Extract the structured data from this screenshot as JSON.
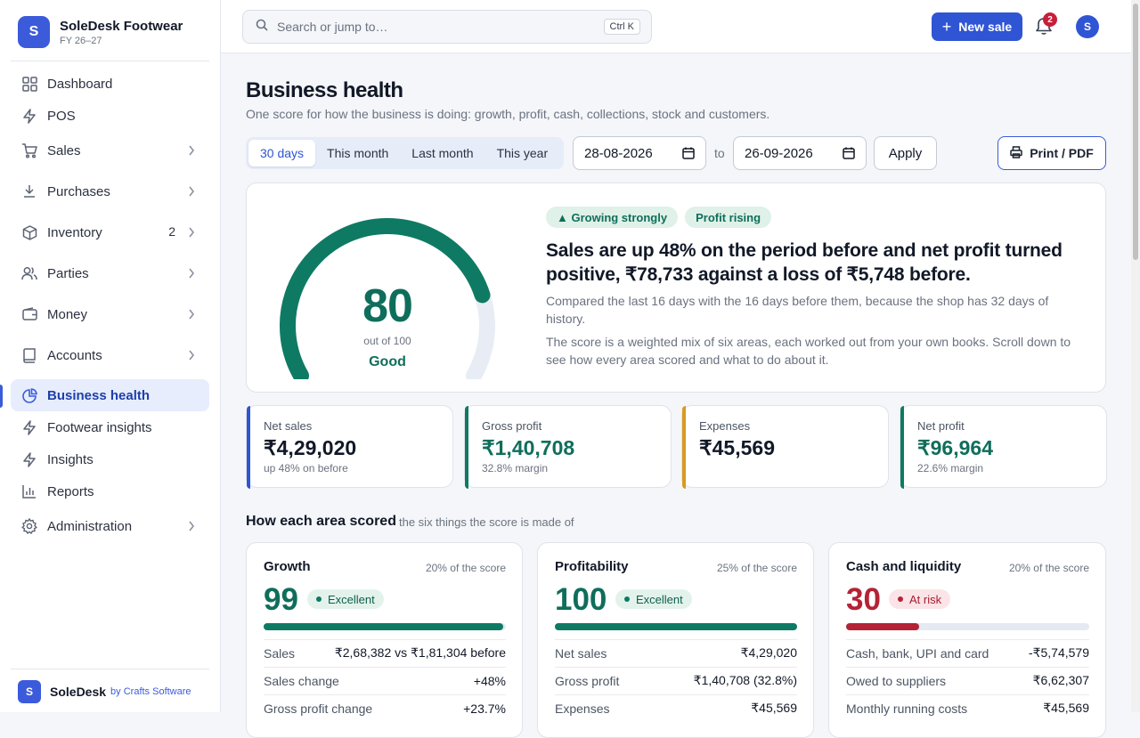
{
  "brand": {
    "initial": "S",
    "name": "SoleDesk Footwear",
    "fy": "FY 26–27"
  },
  "sidebar": {
    "items": [
      {
        "label": "Dashboard"
      },
      {
        "label": "POS"
      },
      {
        "label": "Sales"
      },
      {
        "label": "Purchases"
      },
      {
        "label": "Inventory",
        "count": "2"
      },
      {
        "label": "Parties"
      },
      {
        "label": "Money"
      },
      {
        "label": "Accounts"
      },
      {
        "label": "Business health"
      },
      {
        "label": "Footwear insights"
      },
      {
        "label": "Insights"
      },
      {
        "label": "Reports"
      },
      {
        "label": "Administration"
      }
    ],
    "footer": {
      "initial": "S",
      "name": "SoleDesk",
      "by": "by Crafts Software"
    }
  },
  "topbar": {
    "search_placeholder": "Search or jump to…",
    "shortcut": "Ctrl K",
    "new_sale": "New sale",
    "notifications": "2",
    "avatar": "S"
  },
  "page": {
    "title": "Business health",
    "subtitle": "One score for how the business is doing: growth, profit, cash, collections, stock and customers.",
    "ranges": [
      "30 days",
      "This month",
      "Last month",
      "This year"
    ],
    "active_range": "30 days",
    "date_from": "28-08-2026",
    "to": "to",
    "date_to": "26-09-2026",
    "apply": "Apply",
    "print": "Print / PDF"
  },
  "hero": {
    "score": "80",
    "score_fraction": 0.8,
    "out_of": "out of 100",
    "label": "Good",
    "badges": [
      "▲ Growing strongly",
      "Profit rising"
    ],
    "headline": "Sales are up 48% on the period before and net profit turned positive, ₹78,733 against a loss of ₹5,748 before.",
    "para1": "Compared the last 16 days with the 16 days before them, because the shop has 32 days of history.",
    "para2": "The score is a weighted mix of six areas, each worked out from your own books. Scroll down to see how every area scored and what to do about it.",
    "colors": {
      "gauge": "#0f7a63",
      "track": "#e8edf5"
    }
  },
  "kpis": [
    {
      "label": "Net sales",
      "value": "₹4,29,020",
      "sub": "up 48% on before",
      "color": "#2f55d4",
      "value_color": "#111827"
    },
    {
      "label": "Gross profit",
      "value": "₹1,40,708",
      "sub": "32.8% margin",
      "color": "#0f7a63",
      "value_color": "#0f6e5b"
    },
    {
      "label": "Expenses",
      "value": "₹45,569",
      "sub": "",
      "color": "#d99a1e",
      "value_color": "#111827"
    },
    {
      "label": "Net profit",
      "value": "₹96,964",
      "sub": "22.6% margin",
      "color": "#0f7a63",
      "value_color": "#0f6e5b"
    }
  ],
  "areas_section": {
    "title": "How each area scored",
    "subtitle": "the six things the score is made of"
  },
  "areas": [
    {
      "name": "Growth",
      "weight": "20% of the score",
      "score": "99",
      "score_fraction": 0.99,
      "status": "Excellent",
      "tone": "good",
      "rows": [
        [
          "Sales",
          "₹2,68,382 vs ₹1,81,304 before"
        ],
        [
          "Sales change",
          "+48%"
        ],
        [
          "Gross profit change",
          "+23.7%"
        ]
      ]
    },
    {
      "name": "Profitability",
      "weight": "25% of the score",
      "score": "100",
      "score_fraction": 1.0,
      "status": "Excellent",
      "tone": "good",
      "rows": [
        [
          "Net sales",
          "₹4,29,020"
        ],
        [
          "Gross profit",
          "₹1,40,708 (32.8%)"
        ],
        [
          "Expenses",
          "₹45,569"
        ]
      ]
    },
    {
      "name": "Cash and liquidity",
      "weight": "20% of the score",
      "score": "30",
      "score_fraction": 0.3,
      "status": "At risk",
      "tone": "bad",
      "rows": [
        [
          "Cash, bank, UPI and card",
          "-₹5,74,579"
        ],
        [
          "Owed to suppliers",
          "₹6,62,307"
        ],
        [
          "Monthly running costs",
          "₹45,569"
        ]
      ]
    }
  ],
  "tones": {
    "good": {
      "text": "#0f6e5b",
      "bar": "#0f7a63",
      "pill_bg": "#e3f3ec",
      "pill_text": "#0f5e4e"
    },
    "bad": {
      "text": "#b42335",
      "bar": "#b42335",
      "pill_bg": "#fbe4e7",
      "pill_text": "#a61e30"
    }
  }
}
